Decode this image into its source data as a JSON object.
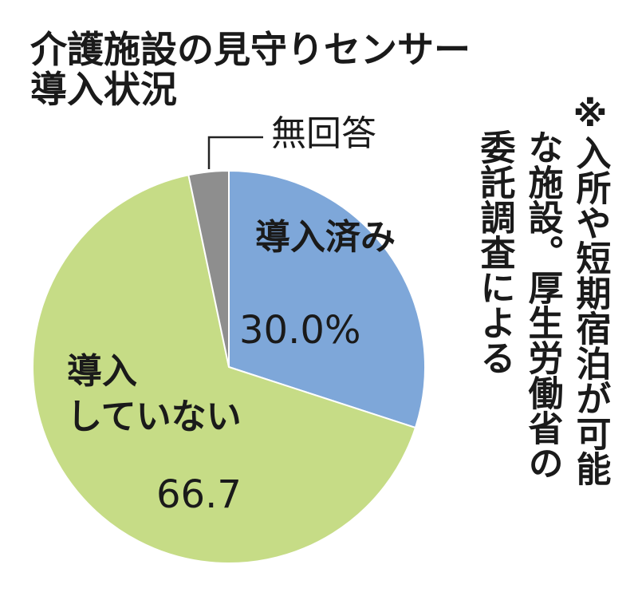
{
  "chart_data": {
    "type": "pie",
    "title": [
      "介護施設の見守りセンサー",
      "導入状況"
    ],
    "categories": [
      "導入済み",
      "導入\nしていない",
      "無回答"
    ],
    "values": [
      30.0,
      66.7,
      3.3
    ],
    "value_labels": [
      "30.0%",
      "66.7",
      null
    ],
    "colors": [
      "#7ea7d9",
      "#c6dc86",
      "#8e8e8e"
    ],
    "note": [
      "※入所や短期宿泊が可能",
      "な施設。厚生労働省の",
      "委託調査による"
    ]
  }
}
